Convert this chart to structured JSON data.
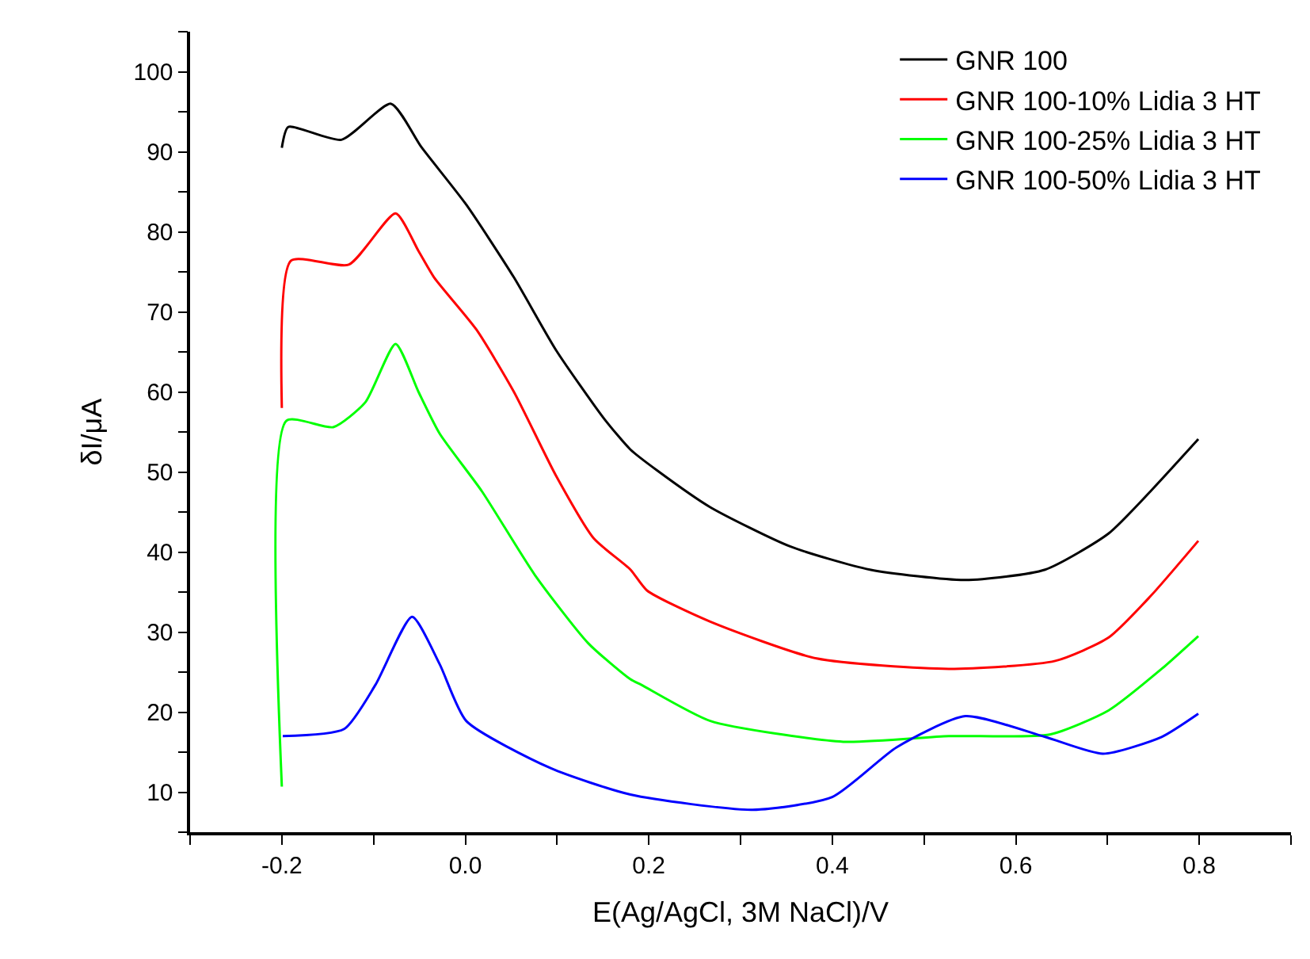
{
  "chart_data": {
    "type": "line",
    "xlabel": "E(Ag/AgCl, 3M NaCl)/V",
    "ylabel": "δI/μA",
    "xlim": [
      -0.3,
      0.9
    ],
    "xticks": [
      {
        "value": -0.3,
        "label": null
      },
      {
        "value": -0.2,
        "label": "-0.2"
      },
      {
        "value": -0.1,
        "label": null
      },
      {
        "value": 0.0,
        "label": "0.0"
      },
      {
        "value": 0.1,
        "label": null
      },
      {
        "value": 0.2,
        "label": "0.2"
      },
      {
        "value": 0.3,
        "label": null
      },
      {
        "value": 0.4,
        "label": "0.4"
      },
      {
        "value": 0.5,
        "label": null
      },
      {
        "value": 0.6,
        "label": "0.6"
      },
      {
        "value": 0.7,
        "label": null
      },
      {
        "value": 0.8,
        "label": "0.8"
      },
      {
        "value": 0.9,
        "label": null
      }
    ],
    "ylim": [
      5,
      105
    ],
    "yticks": [
      {
        "value": 5,
        "label": null
      },
      10,
      {
        "value": 15,
        "label": null
      },
      20,
      {
        "value": 25,
        "label": null
      },
      30,
      {
        "value": 35,
        "label": null
      },
      40,
      {
        "value": 45,
        "label": null
      },
      50,
      {
        "value": 55,
        "label": null
      },
      60,
      {
        "value": 65,
        "label": null
      },
      70,
      {
        "value": 75,
        "label": null
      },
      80,
      {
        "value": 85,
        "label": null
      },
      90,
      {
        "value": 95,
        "label": null
      },
      100,
      {
        "value": 105,
        "label": null
      }
    ],
    "legend": "top right",
    "marker": "none",
    "line_style": "solid",
    "series": [
      {
        "name": "GNR 100",
        "color": "#000000",
        "x": [
          -0.2,
          -0.193,
          -0.135,
          -0.081,
          -0.048,
          0.001,
          0.053,
          0.099,
          0.151,
          0.18,
          0.209,
          0.267,
          0.354,
          0.441,
          0.545,
          0.632,
          0.701,
          0.747,
          0.799
        ],
        "values": [
          90.5,
          93.1,
          91.5,
          96.0,
          90.6,
          83.4,
          74.3,
          65.2,
          56.7,
          52.8,
          50.2,
          45.6,
          40.7,
          37.8,
          36.5,
          37.8,
          42.3,
          47.6,
          54.1
        ]
      },
      {
        "name": "GNR 100-10% Lidia 3 HT",
        "color": "#ff0000",
        "x": [
          -0.2,
          -0.19,
          -0.127,
          -0.076,
          -0.051,
          -0.034,
          0.012,
          0.053,
          0.099,
          0.14,
          0.18,
          0.198,
          0.267,
          0.383,
          0.527,
          0.643,
          0.701,
          0.747,
          0.799
        ],
        "values": [
          58.0,
          76.4,
          75.9,
          82.3,
          77.6,
          74.3,
          67.8,
          60.0,
          49.5,
          41.7,
          37.8,
          35.2,
          31.3,
          26.7,
          25.4,
          26.4,
          29.3,
          34.5,
          41.4
        ]
      },
      {
        "name": "GNR 100-25% Lidia 3 HT",
        "color": "#00ff00",
        "x": [
          -0.2,
          -0.195,
          -0.144,
          -0.109,
          -0.076,
          -0.051,
          -0.028,
          0.018,
          0.076,
          0.134,
          0.18,
          0.192,
          0.267,
          0.412,
          0.527,
          0.637,
          0.701,
          0.759,
          0.799
        ],
        "values": [
          10.7,
          56.4,
          55.6,
          58.7,
          66.0,
          60.0,
          54.8,
          47.6,
          37.1,
          28.6,
          24.1,
          23.4,
          18.9,
          16.3,
          17.0,
          17.2,
          20.2,
          25.4,
          29.5
        ]
      },
      {
        "name": "GNR 100-50% Lidia 3 HT",
        "color": "#0000ff",
        "x": [
          -0.199,
          -0.132,
          -0.098,
          -0.058,
          -0.028,
          0.001,
          0.093,
          0.18,
          0.313,
          0.4,
          0.47,
          0.545,
          0.632,
          0.695,
          0.759,
          0.799
        ],
        "values": [
          17.0,
          17.9,
          23.4,
          31.9,
          26.0,
          18.9,
          13.0,
          9.7,
          7.8,
          9.4,
          15.6,
          19.5,
          16.9,
          14.8,
          16.9,
          19.8
        ]
      }
    ]
  }
}
